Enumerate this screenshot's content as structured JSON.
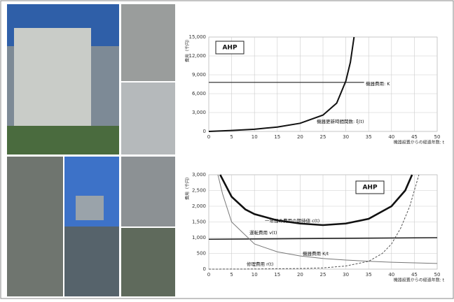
{
  "chart_data": [
    {
      "type": "line",
      "title": "AHP",
      "ylabel": "費用（千円）",
      "xlabel": "機器設置からの経過年数: t",
      "xlim": [
        0,
        50
      ],
      "xticks": [
        0,
        5,
        10,
        15,
        20,
        25,
        30,
        35,
        40,
        45,
        50
      ],
      "ylim": [
        0,
        15000
      ],
      "yticks": [
        0,
        {
          "value": 3000,
          "label": "3,000"
        },
        {
          "value": 6000,
          "label": "6,000"
        },
        {
          "value": 9000,
          "label": "9,000"
        },
        {
          "value": 12000,
          "label": "12,000"
        },
        {
          "value": 15000,
          "label": "15,000"
        }
      ],
      "grid": true,
      "series": [
        {
          "name": "機器費用: K",
          "color": "#222222",
          "line_width": 1.2,
          "x": [
            0,
            34
          ],
          "values": [
            7800,
            7800
          ]
        },
        {
          "name": "機器更新時間関数: ξ(t)",
          "color": "#111111",
          "line_width": 2,
          "x": [
            0,
            5,
            10,
            15,
            20,
            25,
            28,
            30,
            31,
            31.8
          ],
          "values": [
            0,
            150,
            350,
            700,
            1300,
            2600,
            4500,
            8000,
            11000,
            15000
          ]
        }
      ]
    },
    {
      "type": "line",
      "title": "AHP",
      "ylabel": "費用（千円）",
      "xlabel": "機器設置からの経過年数: t",
      "xlim": [
        0,
        50
      ],
      "xticks": [
        0,
        5,
        10,
        15,
        20,
        25,
        30,
        35,
        40,
        45,
        50
      ],
      "ylim": [
        0,
        3000
      ],
      "yticks": [
        0,
        500,
        {
          "value": 1000,
          "label": "1,000"
        },
        {
          "value": 1500,
          "label": "1,500"
        },
        {
          "value": 2000,
          "label": "2,000"
        },
        {
          "value": 2500,
          "label": "2,500"
        },
        {
          "value": 3000,
          "label": "3,000"
        }
      ],
      "grid": true,
      "series": [
        {
          "name": "一年間の費用の期待値 c(t)",
          "color": "#111111",
          "line_width": 2.6,
          "x": [
            2.5,
            5,
            8,
            10,
            15,
            20,
            25,
            30,
            35,
            40,
            43,
            44.5
          ],
          "values": [
            3000,
            2300,
            1900,
            1750,
            1550,
            1450,
            1400,
            1450,
            1600,
            2000,
            2500,
            3000
          ]
        },
        {
          "name": "運転費用 v(t)",
          "color": "#222222",
          "line_width": 1.6,
          "x": [
            0,
            50
          ],
          "values": [
            950,
            1000
          ]
        },
        {
          "name": "機器費用 K/t",
          "color": "#777777",
          "line_width": 1,
          "x": [
            2,
            3,
            5,
            10,
            15,
            20,
            25,
            30,
            35,
            40,
            45,
            50
          ],
          "values": [
            3000,
            2400,
            1500,
            800,
            550,
            420,
            340,
            290,
            250,
            220,
            200,
            180
          ]
        },
        {
          "name": "修理費用 r(t)",
          "color": "#555555",
          "line_width": 1,
          "dashed": true,
          "x": [
            0,
            10,
            20,
            25,
            30,
            35,
            38,
            40,
            42,
            44,
            46
          ],
          "values": [
            0,
            5,
            20,
            40,
            100,
            250,
            500,
            800,
            1300,
            2000,
            3000
          ]
        }
      ]
    }
  ]
}
